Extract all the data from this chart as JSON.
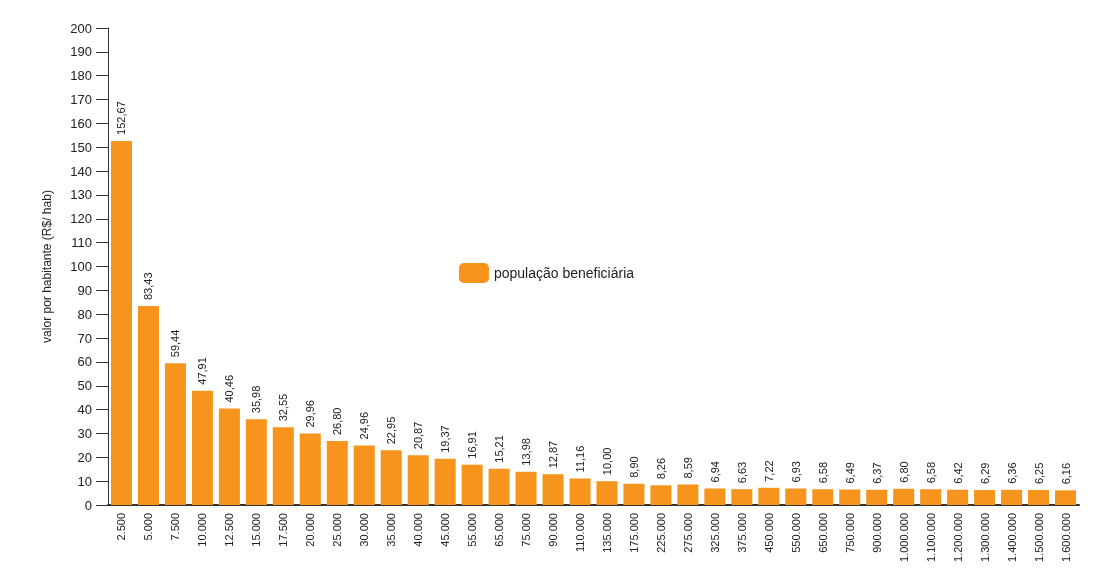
{
  "chart_data": {
    "type": "bar",
    "ylabel": "valor por habitante (R$/ hab)",
    "categories": [
      "2.500",
      "5.000",
      "7.500",
      "10.000",
      "12.500",
      "15.000",
      "17.500",
      "20.000",
      "25.000",
      "30.000",
      "35.000",
      "40.000",
      "45.000",
      "55.000",
      "65.000",
      "75.000",
      "90.000",
      "110.000",
      "135.000",
      "175.000",
      "225.000",
      "275.000",
      "325.000",
      "375.000",
      "450.000",
      "550.000",
      "650.000",
      "750.000",
      "900.000",
      "1.000.000",
      "1.100.000",
      "1.200.000",
      "1.300.000",
      "1.400.000",
      "1.500.000",
      "1.600.000"
    ],
    "series": [
      {
        "name": "população beneficiária",
        "color": "#f7941d",
        "values": [
          152.67,
          83.43,
          59.44,
          47.91,
          40.46,
          35.98,
          32.55,
          29.96,
          26.8,
          24.96,
          22.95,
          20.87,
          19.37,
          16.91,
          15.21,
          13.98,
          12.87,
          11.16,
          10.0,
          8.9,
          8.26,
          8.59,
          6.94,
          6.63,
          7.22,
          6.93,
          6.58,
          6.49,
          6.37,
          6.8,
          6.58,
          6.42,
          6.29,
          6.36,
          6.25,
          6.16
        ],
        "value_labels": [
          "152,67",
          "83,43",
          "59,44",
          "47,91",
          "40,46",
          "35,98",
          "32,55",
          "29,96",
          "26,80",
          "24,96",
          "22,95",
          "20,87",
          "19,37",
          "16,91",
          "15,21",
          "13,98",
          "12,87",
          "11,16",
          "10,00",
          "8,90",
          "8,26",
          "8,59",
          "6,94",
          "6,63",
          "7,22",
          "6,93",
          "6,58",
          "6,49",
          "6,37",
          "6,80",
          "6,58",
          "6,42",
          "6,29",
          "6,36",
          "6,25",
          "6,16"
        ]
      }
    ],
    "ylim": [
      0,
      200
    ],
    "yticks": [
      0,
      10,
      20,
      30,
      40,
      50,
      60,
      70,
      80,
      90,
      100,
      110,
      120,
      130,
      140,
      150,
      160,
      170,
      180,
      190,
      200
    ],
    "grid": false,
    "legend": "center"
  }
}
